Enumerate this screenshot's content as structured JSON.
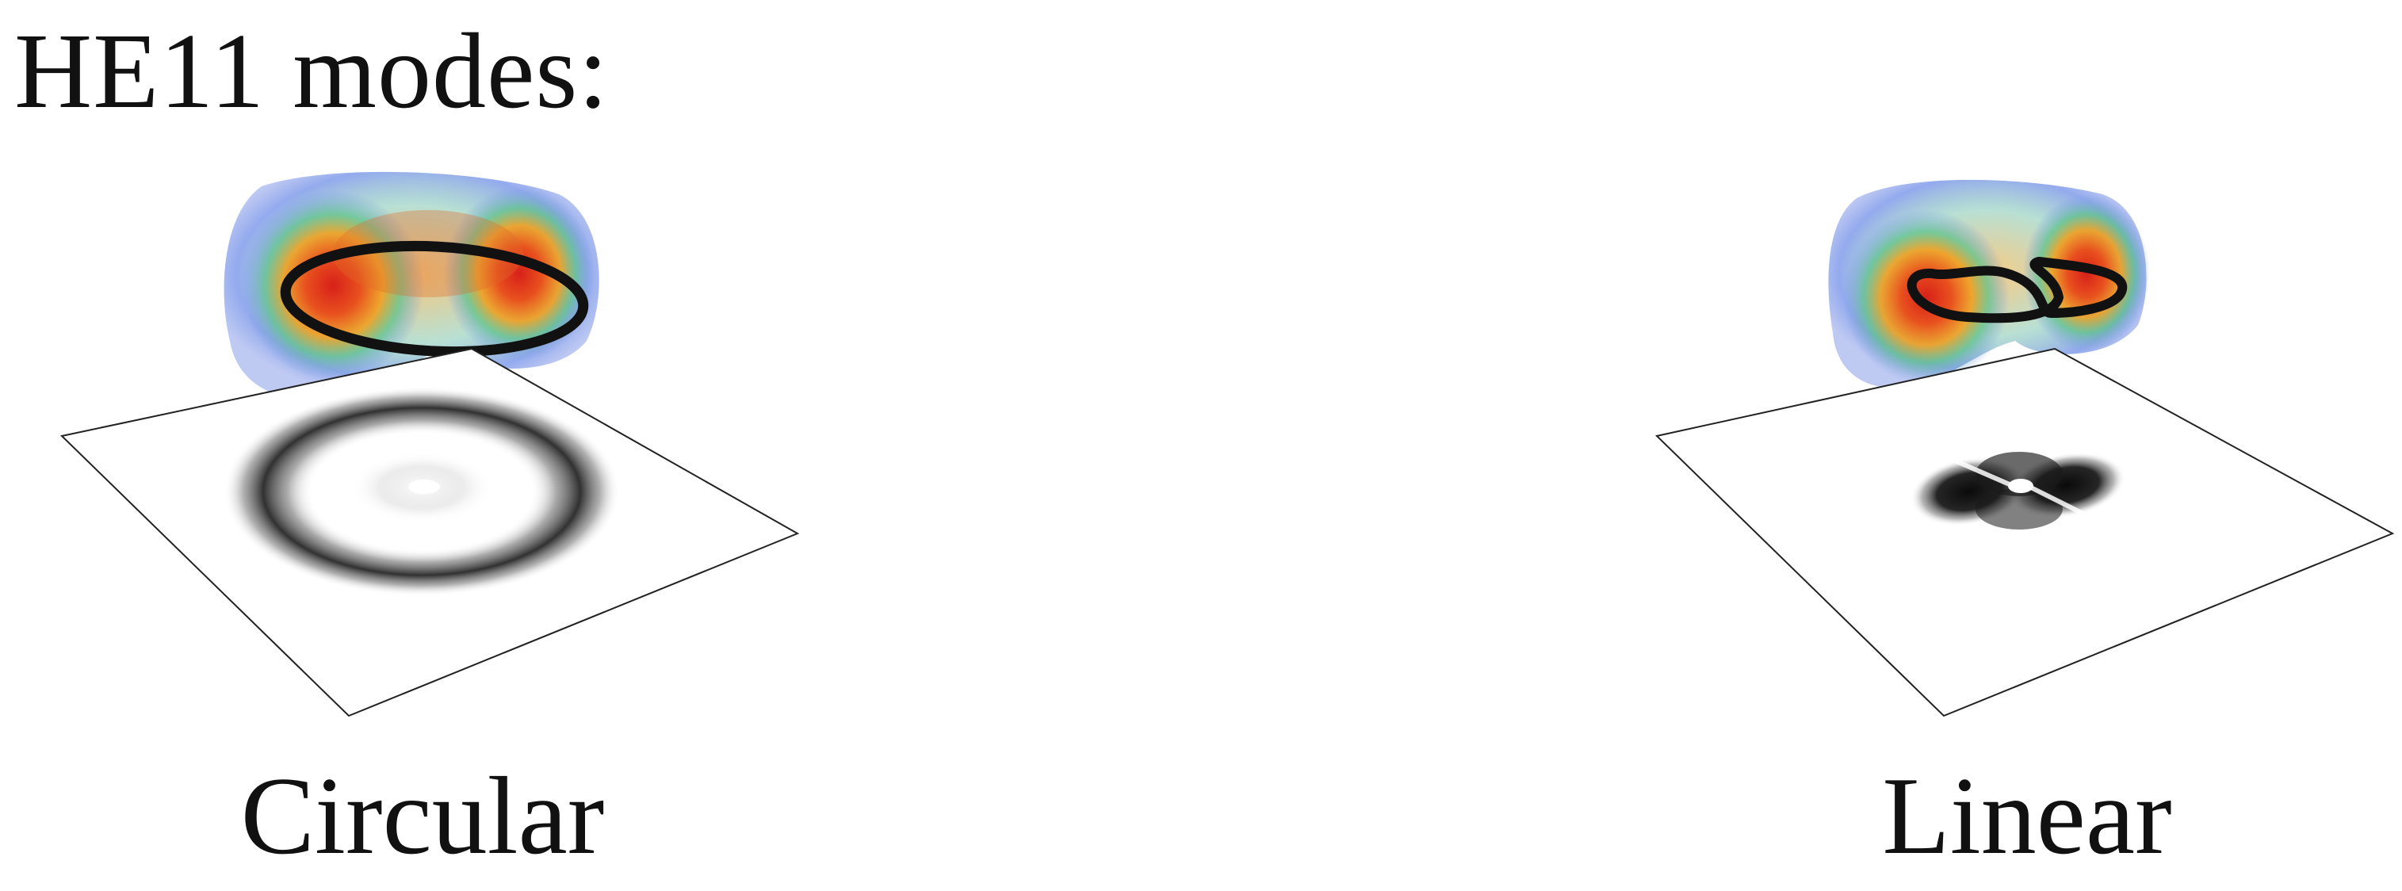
{
  "title": "HE11 modes:",
  "panels": [
    {
      "id": "circular",
      "caption": "Circular",
      "polarization_path": "ellipse",
      "intensity_pattern": "ring"
    },
    {
      "id": "linear",
      "caption": "Linear",
      "polarization_path": "figure-eight",
      "intensity_pattern": "two-lobe"
    }
  ],
  "colors": {
    "text": "#111111",
    "field_hot": "#d7201a",
    "field_warm": "#f0a020",
    "field_mid": "#5dc28a",
    "field_cool": "#6f8ee8",
    "plane_edge": "#222222",
    "trajectory": "#111111"
  }
}
